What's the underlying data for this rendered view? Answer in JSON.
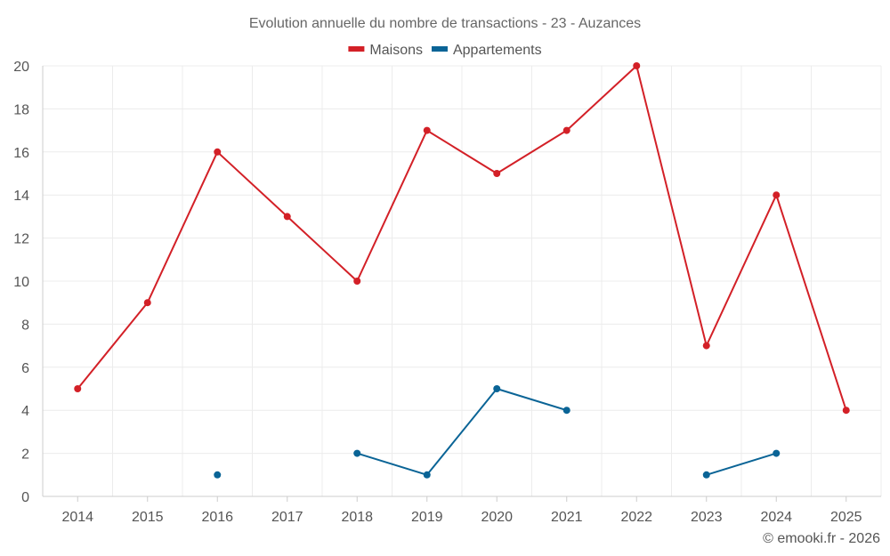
{
  "chart_data": {
    "type": "line",
    "title": "Evolution annuelle du nombre de transactions - 23 - Auzances",
    "categories": [
      "2014",
      "2015",
      "2016",
      "2017",
      "2018",
      "2019",
      "2020",
      "2021",
      "2022",
      "2023",
      "2024",
      "2025"
    ],
    "series": [
      {
        "name": "Maisons",
        "color": "#d32027",
        "values": [
          5,
          9,
          16,
          13,
          10,
          17,
          15,
          17,
          20,
          7,
          14,
          4
        ]
      },
      {
        "name": "Appartements",
        "color": "#0a6496",
        "values": [
          null,
          null,
          1,
          null,
          2,
          1,
          5,
          4,
          null,
          1,
          2,
          null
        ]
      }
    ],
    "ylim": [
      0,
      20
    ],
    "yticks": [
      0,
      2,
      4,
      6,
      8,
      10,
      12,
      14,
      16,
      18,
      20
    ],
    "grid": true,
    "legend_position": "top-center",
    "xlabel": "",
    "ylabel": ""
  },
  "credit": "© emooki.fr - 2026"
}
